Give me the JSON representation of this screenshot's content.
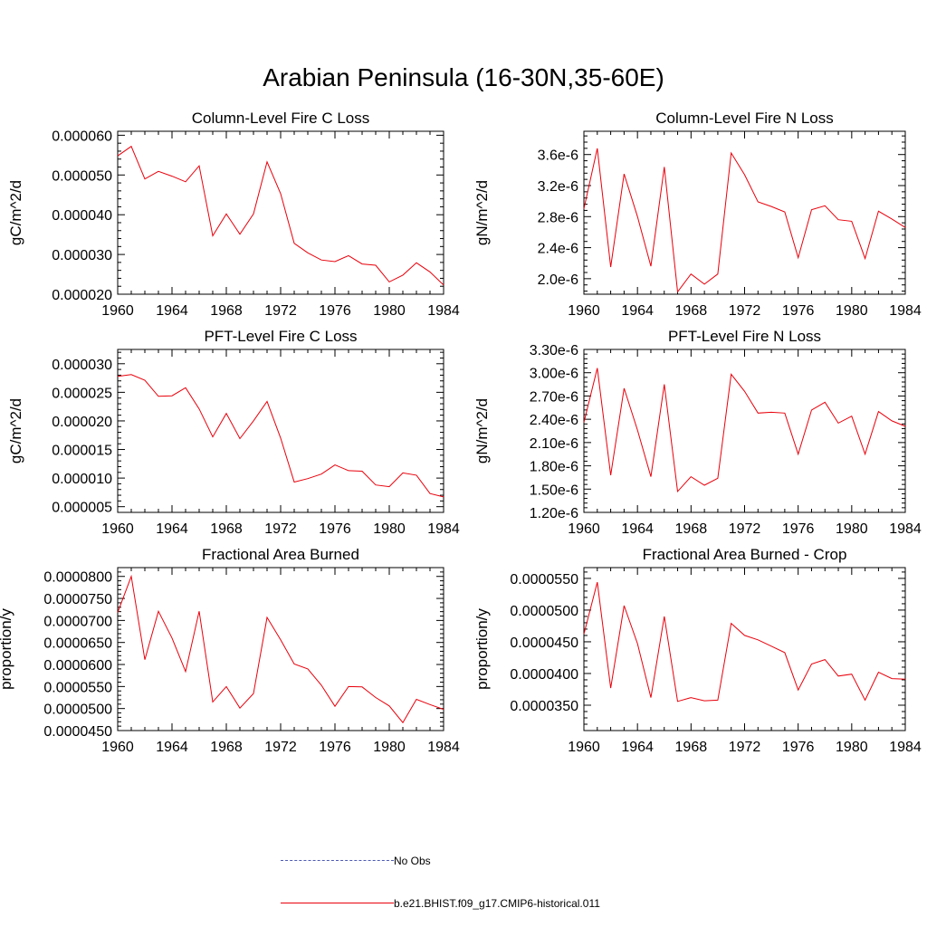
{
  "figure": {
    "title": "Arabian Peninsula (16-30N,35-60E)"
  },
  "legend": {
    "entries": [
      {
        "label": "No Obs",
        "color": "#4d5bb5",
        "style": "dashed"
      },
      {
        "label": "b.e21.BHIST.f09_g17.CMIP6-historical.011",
        "color": "#e8000b",
        "style": "solid"
      }
    ]
  },
  "colors": {
    "model_line": "#e8000b",
    "no_obs_line": "#4d5bb5",
    "axis": "#000000"
  },
  "chart_data": [
    {
      "type": "line",
      "title": "Column-Level Fire C Loss",
      "ylabel": "gC/m^2/d",
      "xlim": [
        1960,
        1984
      ],
      "ylim": [
        2e-05,
        6.1e-05
      ],
      "xticks": [
        "1960",
        "1964",
        "1968",
        "1972",
        "1976",
        "1980",
        "1984"
      ],
      "yticks": [
        {
          "v": 2e-05,
          "label": "0.000020"
        },
        {
          "v": 3e-05,
          "label": "0.000030"
        },
        {
          "v": 4e-05,
          "label": "0.000040"
        },
        {
          "v": 5e-05,
          "label": "0.000050"
        },
        {
          "v": 6e-05,
          "label": "0.000060"
        }
      ],
      "x": [
        1960,
        1961,
        1962,
        1963,
        1964,
        1965,
        1966,
        1967,
        1968,
        1969,
        1970,
        1971,
        1972,
        1973,
        1974,
        1975,
        1976,
        1977,
        1978,
        1979,
        1980,
        1981,
        1982,
        1983,
        1984
      ],
      "series": [
        {
          "name": "b.e21.BHIST.f09_g17.CMIP6-historical.011",
          "values": [
            5.48e-05,
            5.72e-05,
            4.9e-05,
            5.09e-05,
            4.97e-05,
            4.83e-05,
            5.23e-05,
            3.47e-05,
            4.02e-05,
            3.51e-05,
            4.02e-05,
            5.33e-05,
            4.53e-05,
            3.28e-05,
            3.04e-05,
            2.86e-05,
            2.82e-05,
            2.97e-05,
            2.76e-05,
            2.73e-05,
            2.31e-05,
            2.48e-05,
            2.79e-05,
            2.56e-05,
            2.23e-05
          ]
        }
      ]
    },
    {
      "type": "line",
      "title": "Column-Level Fire N Loss",
      "ylabel": "gN/m^2/d",
      "xlim": [
        1960,
        1984
      ],
      "ylim": [
        1.8e-06,
        3.9e-06
      ],
      "xticks": [
        "1960",
        "1964",
        "1968",
        "1972",
        "1976",
        "1980",
        "1984"
      ],
      "yticks": [
        {
          "v": 2e-06,
          "label": "2.0e-6"
        },
        {
          "v": 2.4e-06,
          "label": "2.4e-6"
        },
        {
          "v": 2.8e-06,
          "label": "2.8e-6"
        },
        {
          "v": 3.2e-06,
          "label": "3.2e-6"
        },
        {
          "v": 3.6e-06,
          "label": "3.6e-6"
        }
      ],
      "x": [
        1960,
        1961,
        1962,
        1963,
        1964,
        1965,
        1966,
        1967,
        1968,
        1969,
        1970,
        1971,
        1972,
        1973,
        1974,
        1975,
        1976,
        1977,
        1978,
        1979,
        1980,
        1981,
        1982,
        1983,
        1984
      ],
      "series": [
        {
          "name": "b.e21.BHIST.f09_g17.CMIP6-historical.011",
          "values": [
            2.9e-06,
            3.68e-06,
            2.15e-06,
            3.35e-06,
            2.8e-06,
            2.16e-06,
            3.44e-06,
            1.83e-06,
            2.06e-06,
            1.93e-06,
            2.06e-06,
            3.62e-06,
            3.34e-06,
            2.99e-06,
            2.93e-06,
            2.86e-06,
            2.27e-06,
            2.89e-06,
            2.94e-06,
            2.76e-06,
            2.74e-06,
            2.26e-06,
            2.87e-06,
            2.77e-06,
            2.66e-06
          ]
        }
      ]
    },
    {
      "type": "line",
      "title": "PFT-Level Fire C Loss",
      "ylabel": "gC/m^2/d",
      "xlim": [
        1960,
        1984
      ],
      "ylim": [
        4e-06,
        3.25e-05
      ],
      "xticks": [
        "1960",
        "1964",
        "1968",
        "1972",
        "1976",
        "1980",
        "1984"
      ],
      "yticks": [
        {
          "v": 5e-06,
          "label": "0.000005"
        },
        {
          "v": 1e-05,
          "label": "0.000010"
        },
        {
          "v": 1.5e-05,
          "label": "0.000015"
        },
        {
          "v": 2e-05,
          "label": "0.000020"
        },
        {
          "v": 2.5e-05,
          "label": "0.000025"
        },
        {
          "v": 3e-05,
          "label": "0.000030"
        }
      ],
      "x": [
        1960,
        1961,
        1962,
        1963,
        1964,
        1965,
        1966,
        1967,
        1968,
        1969,
        1970,
        1971,
        1972,
        1973,
        1974,
        1975,
        1976,
        1977,
        1978,
        1979,
        1980,
        1981,
        1982,
        1983,
        1984
      ],
      "series": [
        {
          "name": "b.e21.BHIST.f09_g17.CMIP6-historical.011",
          "values": [
            2.78e-05,
            2.81e-05,
            2.71e-05,
            2.43e-05,
            2.44e-05,
            2.58e-05,
            2.21e-05,
            1.72e-05,
            2.13e-05,
            1.69e-05,
            2e-05,
            2.34e-05,
            1.7e-05,
            9.3e-06,
            9.9e-06,
            1.07e-05,
            1.23e-05,
            1.13e-05,
            1.12e-05,
            8.8e-06,
            8.5e-06,
            1.09e-05,
            1.05e-05,
            7.3e-06,
            6.7e-06
          ]
        }
      ]
    },
    {
      "type": "line",
      "title": "PFT-Level Fire N Loss",
      "ylabel": "gN/m^2/d",
      "xlim": [
        1960,
        1984
      ],
      "ylim": [
        1.2e-06,
        3.3e-06
      ],
      "xticks": [
        "1960",
        "1964",
        "1968",
        "1972",
        "1976",
        "1980",
        "1984"
      ],
      "yticks": [
        {
          "v": 1.2e-06,
          "label": "1.20e-6"
        },
        {
          "v": 1.5e-06,
          "label": "1.50e-6"
        },
        {
          "v": 1.8e-06,
          "label": "1.80e-6"
        },
        {
          "v": 2.1e-06,
          "label": "2.10e-6"
        },
        {
          "v": 2.4e-06,
          "label": "2.40e-6"
        },
        {
          "v": 2.7e-06,
          "label": "2.70e-6"
        },
        {
          "v": 3e-06,
          "label": "3.00e-6"
        },
        {
          "v": 3.3e-06,
          "label": "3.30e-6"
        }
      ],
      "x": [
        1960,
        1961,
        1962,
        1963,
        1964,
        1965,
        1966,
        1967,
        1968,
        1969,
        1970,
        1971,
        1972,
        1973,
        1974,
        1975,
        1976,
        1977,
        1978,
        1979,
        1980,
        1981,
        1982,
        1983,
        1984
      ],
      "series": [
        {
          "name": "b.e21.BHIST.f09_g17.CMIP6-historical.011",
          "values": [
            2.36e-06,
            3.06e-06,
            1.68e-06,
            2.8e-06,
            2.26e-06,
            1.66e-06,
            2.85e-06,
            1.47e-06,
            1.66e-06,
            1.55e-06,
            1.64e-06,
            2.98e-06,
            2.76e-06,
            2.48e-06,
            2.49e-06,
            2.48e-06,
            1.95e-06,
            2.52e-06,
            2.62e-06,
            2.35e-06,
            2.44e-06,
            1.95e-06,
            2.5e-06,
            2.38e-06,
            2.31e-06
          ]
        }
      ]
    },
    {
      "type": "line",
      "title": "Fractional Area Burned",
      "ylabel": "proportion/y",
      "xlim": [
        1960,
        1984
      ],
      "ylim": [
        4.5e-05,
        8.2e-05
      ],
      "xticks": [
        "1960",
        "1964",
        "1968",
        "1972",
        "1976",
        "1980",
        "1984"
      ],
      "yticks": [
        {
          "v": 4.5e-05,
          "label": "0.0000450"
        },
        {
          "v": 5e-05,
          "label": "0.0000500"
        },
        {
          "v": 5.5e-05,
          "label": "0.0000550"
        },
        {
          "v": 6e-05,
          "label": "0.0000600"
        },
        {
          "v": 6.5e-05,
          "label": "0.0000650"
        },
        {
          "v": 7e-05,
          "label": "0.0000700"
        },
        {
          "v": 7.5e-05,
          "label": "0.0000750"
        },
        {
          "v": 8e-05,
          "label": "0.0000800"
        }
      ],
      "x": [
        1960,
        1961,
        1962,
        1963,
        1964,
        1965,
        1966,
        1967,
        1968,
        1969,
        1970,
        1971,
        1972,
        1973,
        1974,
        1975,
        1976,
        1977,
        1978,
        1979,
        1980,
        1981,
        1982,
        1983,
        1984
      ],
      "series": [
        {
          "name": "b.e21.BHIST.f09_g17.CMIP6-historical.011",
          "values": [
            7.18e-05,
            8e-05,
            6.11e-05,
            7.21e-05,
            6.6e-05,
            5.84e-05,
            7.21e-05,
            5.15e-05,
            5.5e-05,
            5.01e-05,
            5.34e-05,
            7.07e-05,
            6.56e-05,
            6.01e-05,
            5.9e-05,
            5.53e-05,
            5.05e-05,
            5.5e-05,
            5.49e-05,
            5.25e-05,
            5.06e-05,
            4.68e-05,
            5.21e-05,
            5.09e-05,
            4.98e-05
          ]
        }
      ]
    },
    {
      "type": "line",
      "title": "Fractional Area Burned - Crop",
      "ylabel": "proportion/y",
      "xlim": [
        1960,
        1984
      ],
      "ylim": [
        3.1e-05,
        5.67e-05
      ],
      "xticks": [
        "1960",
        "1964",
        "1968",
        "1972",
        "1976",
        "1980",
        "1984"
      ],
      "yticks": [
        {
          "v": 3.5e-05,
          "label": "0.0000350"
        },
        {
          "v": 4e-05,
          "label": "0.0000400"
        },
        {
          "v": 4.5e-05,
          "label": "0.0000450"
        },
        {
          "v": 5e-05,
          "label": "0.0000500"
        },
        {
          "v": 5.5e-05,
          "label": "0.0000550"
        }
      ],
      "x": [
        1960,
        1961,
        1962,
        1963,
        1964,
        1965,
        1966,
        1967,
        1968,
        1969,
        1970,
        1971,
        1972,
        1973,
        1974,
        1975,
        1976,
        1977,
        1978,
        1979,
        1980,
        1981,
        1982,
        1983,
        1984
      ],
      "series": [
        {
          "name": "b.e21.BHIST.f09_g17.CMIP6-historical.011",
          "values": [
            4.62e-05,
            5.44e-05,
            3.77e-05,
            5.07e-05,
            4.47e-05,
            3.62e-05,
            4.9e-05,
            3.56e-05,
            3.62e-05,
            3.57e-05,
            3.58e-05,
            4.79e-05,
            4.6e-05,
            4.53e-05,
            4.43e-05,
            4.33e-05,
            3.74e-05,
            4.15e-05,
            4.22e-05,
            3.96e-05,
            3.99e-05,
            3.58e-05,
            4.02e-05,
            3.92e-05,
            3.91e-05
          ]
        }
      ]
    }
  ]
}
